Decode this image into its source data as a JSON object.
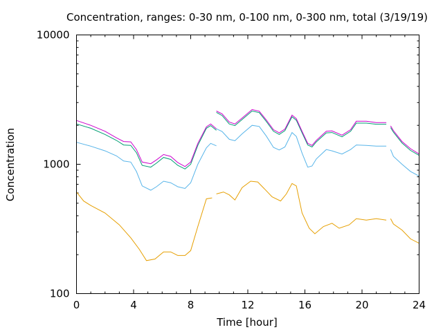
{
  "chart_data": {
    "type": "line",
    "title": "Concentration, ranges: 0-30 nm, 0-100 nm, 0-300 nm, total (3/19/19)",
    "xlabel": "Time [hour]",
    "ylabel": "Concentration",
    "xlim": [
      0,
      24
    ],
    "ylim": [
      100,
      10000
    ],
    "yscale": "log",
    "grid": false,
    "xticks": [
      0,
      4,
      8,
      12,
      16,
      20,
      24
    ],
    "xtick_labels": [
      "0",
      "4",
      "8",
      "12",
      "16",
      "20",
      "24"
    ],
    "yticks": [
      100,
      1000,
      10000
    ],
    "ytick_labels": [
      "100",
      "1000",
      "10000"
    ],
    "series": [
      {
        "color": "#cc00cc",
        "segments": [
          [
            [
              0,
              2180
            ],
            [
              1,
              2000
            ],
            [
              2,
              1800
            ],
            [
              2.8,
              1600
            ],
            [
              3.3,
              1500
            ],
            [
              3.8,
              1490
            ],
            [
              4.2,
              1300
            ],
            [
              4.6,
              1040
            ],
            [
              5.2,
              1010
            ],
            [
              5.6,
              1080
            ],
            [
              6.1,
              1190
            ],
            [
              6.6,
              1150
            ],
            [
              7.1,
              1030
            ],
            [
              7.6,
              960
            ],
            [
              8,
              1040
            ],
            [
              8.5,
              1450
            ],
            [
              9.1,
              1950
            ],
            [
              9.4,
              2050
            ],
            [
              9.8,
              1880
            ]
          ],
          [
            [
              9.8,
              2580
            ],
            [
              10.2,
              2450
            ],
            [
              10.7,
              2120
            ],
            [
              11.1,
              2050
            ],
            [
              11.6,
              2280
            ],
            [
              12.3,
              2650
            ],
            [
              12.8,
              2570
            ],
            [
              13.3,
              2200
            ],
            [
              13.8,
              1850
            ],
            [
              14.2,
              1750
            ],
            [
              14.6,
              1870
            ],
            [
              15.1,
              2400
            ],
            [
              15.4,
              2250
            ],
            [
              15.8,
              1800
            ],
            [
              16.2,
              1450
            ],
            [
              16.5,
              1400
            ],
            [
              16.8,
              1530
            ],
            [
              17.5,
              1800
            ],
            [
              17.9,
              1810
            ],
            [
              18.6,
              1680
            ],
            [
              19.2,
              1850
            ],
            [
              19.6,
              2150
            ],
            [
              20.3,
              2150
            ],
            [
              21,
              2100
            ],
            [
              21.7,
              2100
            ]
          ],
          [
            [
              22,
              1980
            ],
            [
              22.2,
              1820
            ],
            [
              22.8,
              1500
            ],
            [
              23.4,
              1320
            ],
            [
              24,
              1200
            ]
          ]
        ]
      },
      {
        "color": "#009e73",
        "segments": [
          [
            [
              0,
              2050
            ],
            [
              1,
              1900
            ],
            [
              2,
              1700
            ],
            [
              2.8,
              1530
            ],
            [
              3.3,
              1410
            ],
            [
              3.8,
              1400
            ],
            [
              4.2,
              1230
            ],
            [
              4.6,
              980
            ],
            [
              5.2,
              950
            ],
            [
              5.6,
              1020
            ],
            [
              6.1,
              1130
            ],
            [
              6.6,
              1090
            ],
            [
              7.1,
              980
            ],
            [
              7.6,
              920
            ],
            [
              8,
              1000
            ],
            [
              8.5,
              1400
            ],
            [
              9.1,
              1900
            ],
            [
              9.4,
              1990
            ],
            [
              9.8,
              1830
            ]
          ],
          [
            [
              9.8,
              2520
            ],
            [
              10.2,
              2380
            ],
            [
              10.7,
              2050
            ],
            [
              11.1,
              1990
            ],
            [
              11.6,
              2220
            ],
            [
              12.3,
              2580
            ],
            [
              12.8,
              2510
            ],
            [
              13.3,
              2140
            ],
            [
              13.8,
              1800
            ],
            [
              14.2,
              1700
            ],
            [
              14.6,
              1820
            ],
            [
              15.1,
              2330
            ],
            [
              15.4,
              2190
            ],
            [
              15.8,
              1750
            ],
            [
              16.2,
              1410
            ],
            [
              16.5,
              1360
            ],
            [
              16.8,
              1490
            ],
            [
              17.5,
              1750
            ],
            [
              17.9,
              1760
            ],
            [
              18.6,
              1630
            ],
            [
              19.2,
              1800
            ],
            [
              19.6,
              2080
            ],
            [
              20.3,
              2080
            ],
            [
              21,
              2040
            ],
            [
              21.7,
              2040
            ]
          ],
          [
            [
              22,
              1920
            ],
            [
              22.2,
              1770
            ],
            [
              22.8,
              1460
            ],
            [
              23.4,
              1280
            ],
            [
              24,
              1170
            ]
          ]
        ]
      },
      {
        "color": "#56b4e9",
        "segments": [
          [
            [
              0,
              1480
            ],
            [
              1,
              1380
            ],
            [
              2,
              1270
            ],
            [
              2.8,
              1160
            ],
            [
              3.3,
              1060
            ],
            [
              3.8,
              1040
            ],
            [
              4.2,
              880
            ],
            [
              4.6,
              680
            ],
            [
              5.2,
              630
            ],
            [
              5.6,
              670
            ],
            [
              6.1,
              740
            ],
            [
              6.6,
              720
            ],
            [
              7.1,
              670
            ],
            [
              7.6,
              650
            ],
            [
              8,
              720
            ],
            [
              8.5,
              1000
            ],
            [
              9.1,
              1340
            ],
            [
              9.4,
              1450
            ],
            [
              9.8,
              1390
            ]
          ],
          [
            [
              9.8,
              1880
            ],
            [
              10.2,
              1790
            ],
            [
              10.7,
              1560
            ],
            [
              11.1,
              1520
            ],
            [
              11.6,
              1720
            ],
            [
              12.3,
              2000
            ],
            [
              12.8,
              1960
            ],
            [
              13.3,
              1650
            ],
            [
              13.8,
              1350
            ],
            [
              14.2,
              1290
            ],
            [
              14.6,
              1360
            ],
            [
              15.1,
              1760
            ],
            [
              15.4,
              1640
            ],
            [
              15.8,
              1220
            ],
            [
              16.2,
              950
            ],
            [
              16.5,
              970
            ],
            [
              16.8,
              1100
            ],
            [
              17.5,
              1300
            ],
            [
              17.9,
              1270
            ],
            [
              18.6,
              1200
            ],
            [
              19.2,
              1300
            ],
            [
              19.6,
              1410
            ],
            [
              20.3,
              1400
            ],
            [
              21,
              1380
            ],
            [
              21.7,
              1380
            ]
          ],
          [
            [
              22,
              1300
            ],
            [
              22.2,
              1150
            ],
            [
              22.8,
              1000
            ],
            [
              23.4,
              880
            ],
            [
              24,
              810
            ]
          ]
        ]
      },
      {
        "color": "#e69f00",
        "segments": [
          [
            [
              0,
              610
            ],
            [
              0.5,
              520
            ],
            [
              1,
              480
            ],
            [
              2,
              420
            ],
            [
              3,
              340
            ],
            [
              3.8,
              270
            ],
            [
              4.4,
              220
            ],
            [
              4.9,
              180
            ],
            [
              5.5,
              185
            ],
            [
              6.1,
              210
            ],
            [
              6.6,
              210
            ],
            [
              7.1,
              197
            ],
            [
              7.6,
              197
            ],
            [
              8,
              215
            ],
            [
              8.5,
              330
            ],
            [
              9.1,
              540
            ],
            [
              9.5,
              550
            ]
          ],
          [
            [
              9.8,
              590
            ],
            [
              10.3,
              610
            ],
            [
              10.7,
              580
            ],
            [
              11.1,
              530
            ],
            [
              11.6,
              660
            ],
            [
              12.2,
              740
            ],
            [
              12.7,
              730
            ],
            [
              13.2,
              640
            ],
            [
              13.7,
              560
            ],
            [
              14.3,
              520
            ],
            [
              14.7,
              590
            ],
            [
              15.1,
              710
            ],
            [
              15.4,
              680
            ],
            [
              15.8,
              420
            ],
            [
              16.3,
              320
            ],
            [
              16.7,
              290
            ],
            [
              17.3,
              330
            ],
            [
              17.9,
              350
            ],
            [
              18.4,
              320
            ],
            [
              19.1,
              340
            ],
            [
              19.6,
              380
            ],
            [
              20.3,
              370
            ],
            [
              21,
              380
            ],
            [
              21.7,
              370
            ]
          ],
          [
            [
              22,
              380
            ],
            [
              22.2,
              345
            ],
            [
              22.8,
              310
            ],
            [
              23.4,
              265
            ],
            [
              24,
              245
            ]
          ]
        ]
      }
    ]
  }
}
